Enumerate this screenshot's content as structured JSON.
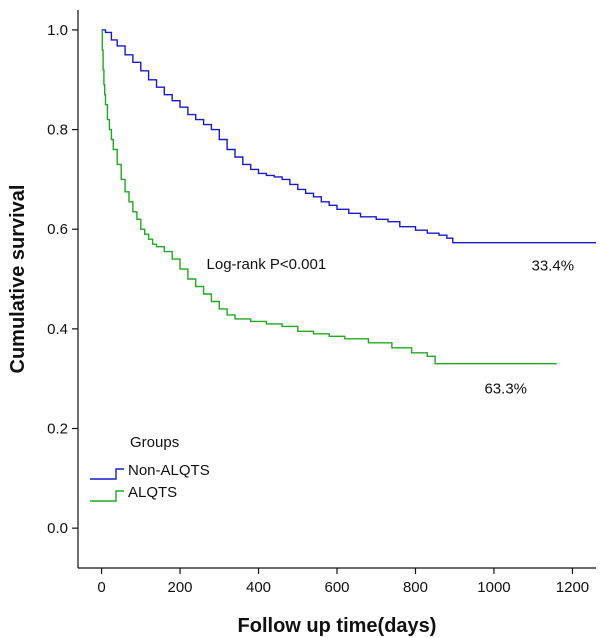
{
  "chart_data": {
    "type": "line",
    "step": true,
    "xlabel": "Follow up time(days)",
    "ylabel": "Cumulative survival",
    "xlim": [
      -60,
      1260
    ],
    "ylim": [
      -0.08,
      1.04
    ],
    "xticks": [
      0,
      200,
      400,
      600,
      800,
      1000,
      1200
    ],
    "yticks": [
      0.0,
      0.2,
      0.4,
      0.6,
      0.8,
      1.0
    ],
    "ytick_labels": [
      "0.0",
      "0.2",
      "0.4",
      "0.6",
      "0.8",
      "1.0"
    ],
    "grid": false,
    "legend_placement": "bottom-left",
    "legend_title": "Groups",
    "series": [
      {
        "name": "Non-ALQTS",
        "color": "#1a1acc",
        "points": [
          [
            0,
            1.0
          ],
          [
            10,
            0.995
          ],
          [
            25,
            0.98
          ],
          [
            40,
            0.968
          ],
          [
            60,
            0.95
          ],
          [
            80,
            0.935
          ],
          [
            100,
            0.918
          ],
          [
            120,
            0.9
          ],
          [
            140,
            0.885
          ],
          [
            160,
            0.87
          ],
          [
            180,
            0.858
          ],
          [
            200,
            0.845
          ],
          [
            220,
            0.83
          ],
          [
            240,
            0.82
          ],
          [
            260,
            0.81
          ],
          [
            280,
            0.8
          ],
          [
            300,
            0.78
          ],
          [
            320,
            0.76
          ],
          [
            340,
            0.745
          ],
          [
            360,
            0.73
          ],
          [
            380,
            0.72
          ],
          [
            400,
            0.712
          ],
          [
            420,
            0.708
          ],
          [
            440,
            0.705
          ],
          [
            460,
            0.7
          ],
          [
            480,
            0.69
          ],
          [
            500,
            0.68
          ],
          [
            520,
            0.672
          ],
          [
            540,
            0.665
          ],
          [
            560,
            0.655
          ],
          [
            580,
            0.648
          ],
          [
            600,
            0.64
          ],
          [
            630,
            0.632
          ],
          [
            660,
            0.625
          ],
          [
            700,
            0.62
          ],
          [
            730,
            0.615
          ],
          [
            760,
            0.605
          ],
          [
            800,
            0.598
          ],
          [
            830,
            0.592
          ],
          [
            860,
            0.588
          ],
          [
            880,
            0.582
          ],
          [
            895,
            0.573
          ],
          [
            900,
            0.573
          ],
          [
            1260,
            0.573
          ]
        ],
        "end_label": "33.4%"
      },
      {
        "name": "ALQTS",
        "color": "#22a822",
        "points": [
          [
            0,
            1.0
          ],
          [
            2,
            0.96
          ],
          [
            4,
            0.92
          ],
          [
            6,
            0.89
          ],
          [
            8,
            0.87
          ],
          [
            10,
            0.85
          ],
          [
            15,
            0.82
          ],
          [
            20,
            0.8
          ],
          [
            25,
            0.78
          ],
          [
            30,
            0.76
          ],
          [
            40,
            0.73
          ],
          [
            50,
            0.7
          ],
          [
            60,
            0.675
          ],
          [
            70,
            0.655
          ],
          [
            80,
            0.635
          ],
          [
            90,
            0.62
          ],
          [
            100,
            0.6
          ],
          [
            110,
            0.59
          ],
          [
            120,
            0.58
          ],
          [
            130,
            0.57
          ],
          [
            140,
            0.565
          ],
          [
            160,
            0.555
          ],
          [
            180,
            0.54
          ],
          [
            200,
            0.52
          ],
          [
            220,
            0.5
          ],
          [
            240,
            0.485
          ],
          [
            260,
            0.47
          ],
          [
            280,
            0.455
          ],
          [
            300,
            0.44
          ],
          [
            320,
            0.428
          ],
          [
            340,
            0.42
          ],
          [
            380,
            0.415
          ],
          [
            420,
            0.41
          ],
          [
            460,
            0.405
          ],
          [
            500,
            0.395
          ],
          [
            540,
            0.39
          ],
          [
            580,
            0.385
          ],
          [
            620,
            0.38
          ],
          [
            680,
            0.372
          ],
          [
            740,
            0.362
          ],
          [
            790,
            0.352
          ],
          [
            830,
            0.345
          ],
          [
            850,
            0.33
          ],
          [
            1160,
            0.33
          ]
        ],
        "end_label": "63.3%"
      }
    ],
    "annotations": [
      {
        "text": "Log-rank  P<0.001",
        "x": 420,
        "y": 0.52
      }
    ]
  }
}
